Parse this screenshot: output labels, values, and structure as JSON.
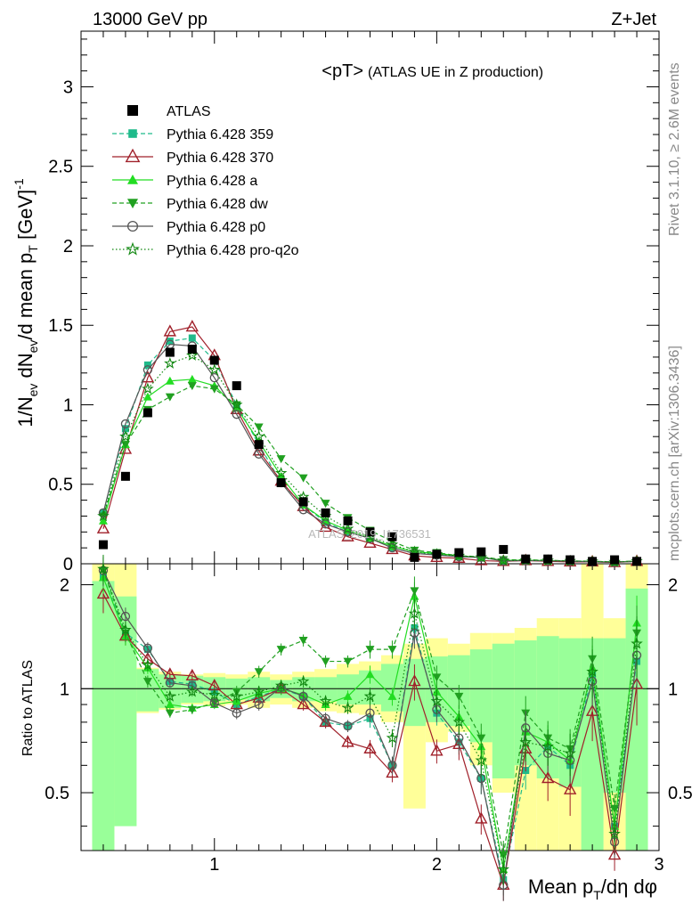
{
  "header": {
    "left": "13000 GeV pp",
    "right": "Z+Jet"
  },
  "side_labels": {
    "rivet": "Rivet 3.1.10, ≥ 2.6M events",
    "mcplots": "mcplots.cern.ch [arXiv:1306.3436]"
  },
  "watermark": "ATLAS_2019_I1736531",
  "chart_data": {
    "type": "line",
    "title": "<pT> (ATLAS UE in Z production)",
    "title_main": "<pT>",
    "title_sub": "(ATLAS UE in Z production)",
    "ylabel_main": "1/N_ev dN_ev/d mean p_T [GeV]^-1",
    "ylabel_ratio": "Ratio to ATLAS",
    "xlabel": "Mean p_T/dη dφ",
    "xlim": [
      0.4,
      3.0
    ],
    "ylim_main": [
      0,
      3.35
    ],
    "ylim_ratio": [
      0.34,
      2.3
    ],
    "x_ticks": [
      "1",
      "2",
      "3"
    ],
    "y_ticks_main": [
      "0",
      "0.5",
      "1",
      "1.5",
      "2",
      "2.5",
      "3"
    ],
    "y_ticks_ratio": [
      "0.5",
      "1",
      "2"
    ],
    "legend_position": "top-left",
    "x": [
      0.5,
      0.6,
      0.7,
      0.8,
      0.9,
      1.0,
      1.1,
      1.2,
      1.3,
      1.4,
      1.5,
      1.6,
      1.7,
      1.8,
      1.9,
      2.0,
      2.1,
      2.2,
      2.3,
      2.4,
      2.5,
      2.6,
      2.7,
      2.8,
      2.9
    ],
    "data_series": {
      "name": "ATLAS",
      "values": [
        0.12,
        0.55,
        0.95,
        1.33,
        1.35,
        1.28,
        1.12,
        0.75,
        0.51,
        0.39,
        0.32,
        0.27,
        0.2,
        0.17,
        0.04,
        0.06,
        0.07,
        0.075,
        0.09,
        0.03,
        0.03,
        0.025,
        0.015,
        0.025,
        0.015
      ]
    },
    "mc_series": [
      {
        "name": "Pythia 6.428 359",
        "color": "#1fba8a",
        "dash": "5,3",
        "marker": "square",
        "values": [
          0.32,
          0.85,
          1.25,
          1.4,
          1.42,
          1.28,
          1.0,
          0.75,
          0.51,
          0.37,
          0.26,
          0.2,
          0.16,
          0.1,
          0.065,
          0.06,
          0.045,
          0.04,
          0.018,
          0.02,
          0.02,
          0.016,
          0.013,
          0.011,
          0.015
        ],
        "ratio": [
          2.1,
          1.45,
          1.3,
          1.05,
          1.03,
          0.98,
          0.9,
          0.95,
          1.0,
          0.95,
          0.8,
          0.78,
          0.82,
          0.6,
          1.5,
          0.85,
          0.7,
          0.55,
          0.28,
          0.58,
          0.68,
          0.6,
          1.1,
          0.4,
          1.2
        ],
        "ratio_err": [
          0.05,
          0.03,
          0.02,
          0.015,
          0.015,
          0.015,
          0.02,
          0.02,
          0.02,
          0.02,
          0.02,
          0.02,
          0.03,
          0.03,
          0.05,
          0.04,
          0.04,
          0.05,
          0.05,
          0.06,
          0.06,
          0.07,
          0.08,
          0.05,
          0.1
        ]
      },
      {
        "name": "Pythia 6.428 370",
        "color": "#a0202a",
        "dash": "",
        "marker": "triangle-up-open",
        "values": [
          0.22,
          0.72,
          1.17,
          1.46,
          1.49,
          1.31,
          0.97,
          0.71,
          0.52,
          0.36,
          0.23,
          0.17,
          0.13,
          0.09,
          0.05,
          0.04,
          0.035,
          0.02,
          0.015,
          0.02,
          0.015,
          0.012,
          0.012,
          0.008,
          0.015
        ],
        "ratio": [
          1.88,
          1.42,
          1.22,
          1.1,
          1.09,
          1.02,
          0.9,
          0.94,
          1.0,
          0.9,
          0.8,
          0.7,
          0.67,
          0.57,
          1.05,
          0.66,
          0.69,
          0.42,
          0.27,
          0.67,
          0.55,
          0.51,
          0.86,
          0.33,
          1.03
        ],
        "ratio_err": [
          0.06,
          0.03,
          0.02,
          0.015,
          0.015,
          0.015,
          0.02,
          0.02,
          0.02,
          0.02,
          0.02,
          0.02,
          0.03,
          0.03,
          0.06,
          0.04,
          0.05,
          0.05,
          0.05,
          0.07,
          0.07,
          0.08,
          0.09,
          0.05,
          0.12
        ]
      },
      {
        "name": "Pythia 6.428 a",
        "color": "#22dd22",
        "dash": "",
        "marker": "triangle-up",
        "values": [
          0.27,
          0.75,
          1.05,
          1.15,
          1.16,
          1.12,
          0.98,
          0.77,
          0.55,
          0.37,
          0.27,
          0.21,
          0.16,
          0.11,
          0.075,
          0.065,
          0.05,
          0.04,
          0.022,
          0.022,
          0.02,
          0.017,
          0.013,
          0.011,
          0.016
        ],
        "ratio": [
          2.1,
          1.42,
          1.15,
          0.9,
          0.88,
          0.9,
          0.92,
          0.97,
          1.0,
          0.96,
          0.9,
          0.95,
          1.1,
          0.95,
          1.85,
          0.98,
          0.83,
          0.68,
          0.3,
          0.75,
          0.7,
          0.62,
          1.15,
          0.4,
          1.55
        ],
        "ratio_err": [
          0.05,
          0.03,
          0.02,
          0.015,
          0.015,
          0.015,
          0.02,
          0.02,
          0.02,
          0.02,
          0.02,
          0.02,
          0.03,
          0.03,
          0.05,
          0.04,
          0.04,
          0.05,
          0.05,
          0.06,
          0.06,
          0.07,
          0.08,
          0.05,
          0.1
        ]
      },
      {
        "name": "Pythia 6.428 dw",
        "color": "#20a020",
        "dash": "5,3",
        "marker": "triangle-down",
        "values": [
          0.3,
          0.75,
          0.97,
          1.05,
          1.12,
          1.1,
          1.0,
          0.86,
          0.66,
          0.54,
          0.38,
          0.29,
          0.21,
          0.14,
          0.085,
          0.07,
          0.05,
          0.045,
          0.025,
          0.025,
          0.022,
          0.018,
          0.016,
          0.012,
          0.018
        ],
        "ratio": [
          2.2,
          1.45,
          1.05,
          0.85,
          0.87,
          0.91,
          0.98,
          1.12,
          1.3,
          1.38,
          1.2,
          1.2,
          1.3,
          1.3,
          1.92,
          1.08,
          0.95,
          0.72,
          0.33,
          0.85,
          0.72,
          0.67,
          1.22,
          0.45,
          1.45
        ],
        "ratio_err": [
          0.05,
          0.03,
          0.02,
          0.015,
          0.015,
          0.015,
          0.02,
          0.02,
          0.02,
          0.02,
          0.02,
          0.02,
          0.03,
          0.03,
          0.05,
          0.04,
          0.04,
          0.05,
          0.05,
          0.06,
          0.06,
          0.07,
          0.08,
          0.05,
          0.1
        ]
      },
      {
        "name": "Pythia 6.428 p0",
        "color": "#555555",
        "dash": "",
        "marker": "circle-open",
        "values": [
          0.32,
          0.88,
          1.22,
          1.38,
          1.37,
          1.17,
          0.94,
          0.69,
          0.51,
          0.34,
          0.25,
          0.2,
          0.16,
          0.1,
          0.065,
          0.055,
          0.045,
          0.04,
          0.018,
          0.02,
          0.018,
          0.016,
          0.012,
          0.01,
          0.015
        ],
        "ratio": [
          2.2,
          1.62,
          1.31,
          1.04,
          1.02,
          0.91,
          0.85,
          0.9,
          1.01,
          0.95,
          0.82,
          0.78,
          0.85,
          0.6,
          1.45,
          0.87,
          0.72,
          0.55,
          0.27,
          0.77,
          0.65,
          0.62,
          1.05,
          0.36,
          1.25
        ],
        "ratio_err": [
          0.05,
          0.03,
          0.02,
          0.015,
          0.015,
          0.015,
          0.02,
          0.02,
          0.02,
          0.02,
          0.02,
          0.02,
          0.03,
          0.03,
          0.05,
          0.04,
          0.04,
          0.05,
          0.05,
          0.06,
          0.06,
          0.07,
          0.08,
          0.05,
          0.1
        ]
      },
      {
        "name": "Pythia 6.428 pro-q2o",
        "color": "#118811",
        "dash": "1.5,2.5",
        "marker": "star-open",
        "values": [
          0.3,
          0.8,
          1.1,
          1.26,
          1.31,
          1.22,
          1.0,
          0.8,
          0.57,
          0.42,
          0.3,
          0.22,
          0.17,
          0.12,
          0.075,
          0.06,
          0.05,
          0.04,
          0.02,
          0.022,
          0.02,
          0.017,
          0.014,
          0.011,
          0.016
        ],
        "ratio": [
          2.22,
          1.48,
          1.17,
          0.95,
          0.98,
          0.96,
          0.95,
          0.98,
          1.02,
          1.05,
          0.92,
          0.88,
          0.95,
          0.72,
          1.65,
          0.92,
          0.8,
          0.62,
          0.3,
          0.7,
          0.68,
          0.65,
          1.12,
          0.38,
          1.35
        ],
        "ratio_err": [
          0.05,
          0.03,
          0.02,
          0.015,
          0.015,
          0.015,
          0.02,
          0.02,
          0.02,
          0.02,
          0.02,
          0.02,
          0.03,
          0.03,
          0.05,
          0.04,
          0.04,
          0.05,
          0.05,
          0.06,
          0.06,
          0.07,
          0.08,
          0.05,
          0.1
        ]
      }
    ],
    "band_edges": [
      0.45,
      0.55,
      0.65,
      0.75,
      0.85,
      0.95,
      1.05,
      1.15,
      1.25,
      1.35,
      1.45,
      1.55,
      1.65,
      1.75,
      1.85,
      1.95,
      2.05,
      2.15,
      2.25,
      2.35,
      2.45,
      2.55,
      2.65,
      2.75,
      2.85,
      2.95
    ],
    "band_stat": [
      [
        0.34,
        2.05
      ],
      [
        0.4,
        1.85
      ],
      [
        0.86,
        1.14
      ],
      [
        0.88,
        1.1
      ],
      [
        0.91,
        1.09
      ],
      [
        0.92,
        1.08
      ],
      [
        0.93,
        1.07
      ],
      [
        0.92,
        1.08
      ],
      [
        0.94,
        1.06
      ],
      [
        0.92,
        1.08
      ],
      [
        0.92,
        1.08
      ],
      [
        0.9,
        1.1
      ],
      [
        0.9,
        1.13
      ],
      [
        0.86,
        1.18
      ],
      [
        0.78,
        1.22
      ],
      [
        0.8,
        1.24
      ],
      [
        0.78,
        1.25
      ],
      [
        0.7,
        1.3
      ],
      [
        0.55,
        1.35
      ],
      [
        0.6,
        1.38
      ],
      [
        0.55,
        1.42
      ],
      [
        0.52,
        1.4
      ],
      [
        0.34,
        1.4
      ],
      [
        0.5,
        1.4
      ],
      [
        0.34,
        1.95
      ]
    ],
    "band_total": [
      [
        0.34,
        2.3
      ],
      [
        0.8,
        2.3
      ],
      [
        0.85,
        1.15
      ],
      [
        0.87,
        1.12
      ],
      [
        0.9,
        1.1
      ],
      [
        0.89,
        1.11
      ],
      [
        0.9,
        1.1
      ],
      [
        0.88,
        1.12
      ],
      [
        0.9,
        1.1
      ],
      [
        0.88,
        1.12
      ],
      [
        0.86,
        1.14
      ],
      [
        0.85,
        1.18
      ],
      [
        0.84,
        1.2
      ],
      [
        0.8,
        1.25
      ],
      [
        0.45,
        1.35
      ],
      [
        0.7,
        1.4
      ],
      [
        0.75,
        1.35
      ],
      [
        0.6,
        1.45
      ],
      [
        0.5,
        1.45
      ],
      [
        0.34,
        1.5
      ],
      [
        0.34,
        1.6
      ],
      [
        0.34,
        1.6
      ],
      [
        0.34,
        2.3
      ],
      [
        0.34,
        1.6
      ],
      [
        0.34,
        2.3
      ]
    ]
  }
}
